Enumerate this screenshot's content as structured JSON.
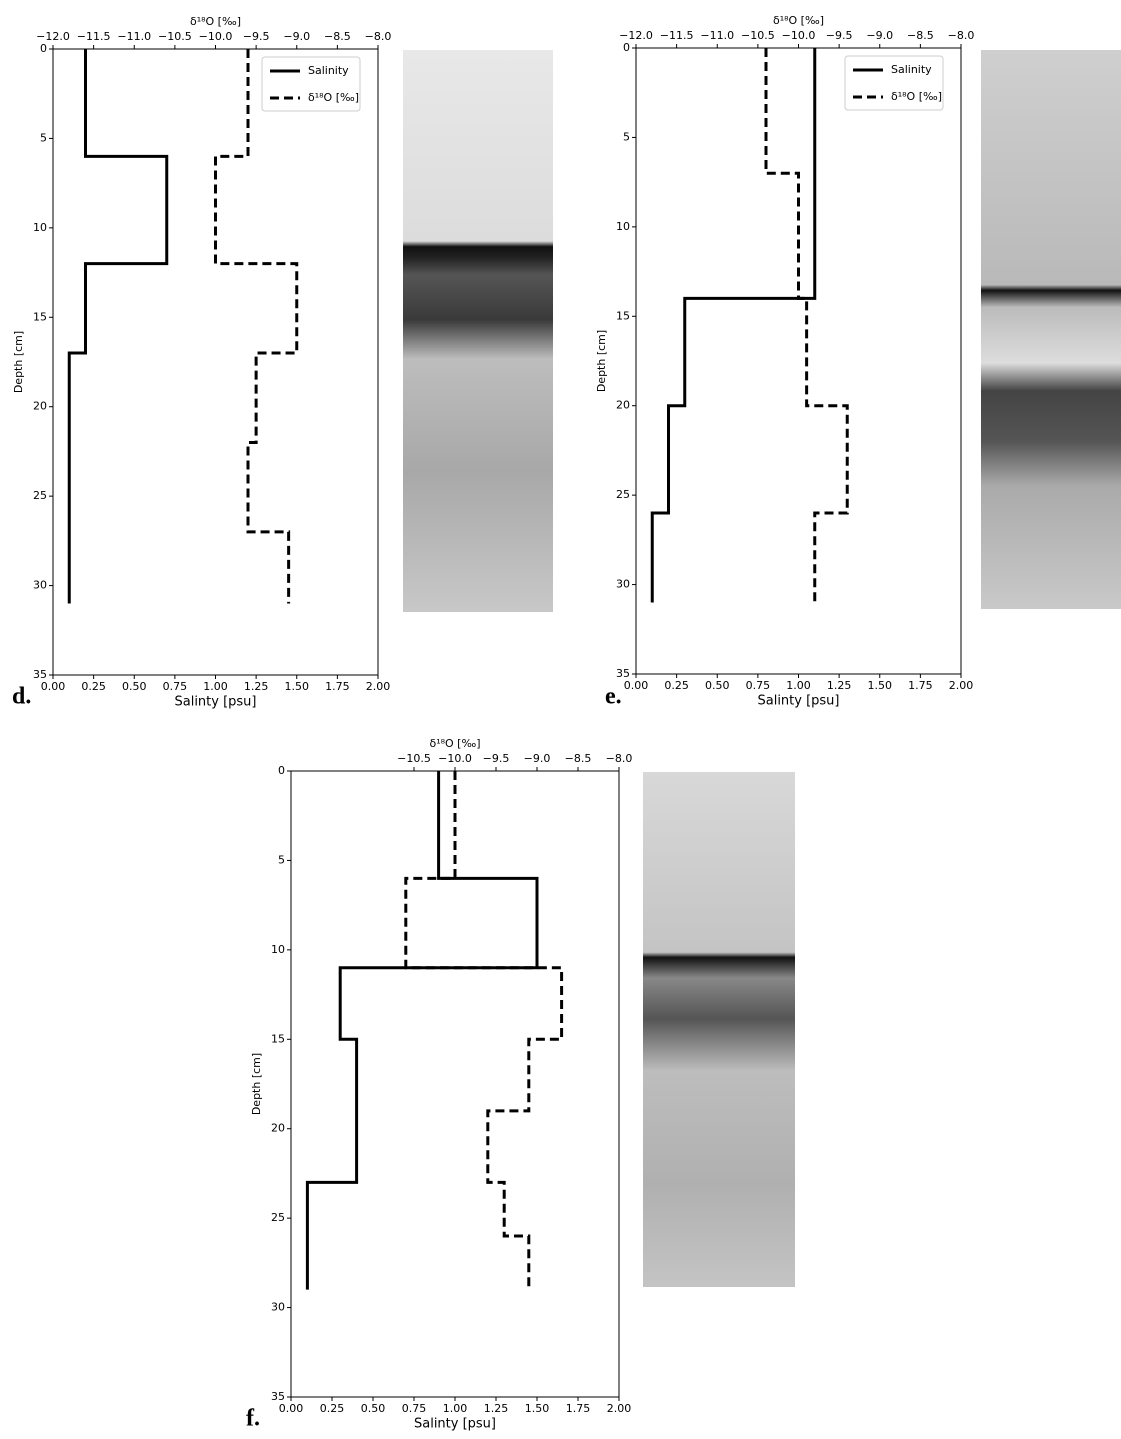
{
  "chart_data": [
    {
      "type": "line",
      "panel_label": "d.",
      "xlabel": "Salinty [psu]",
      "x2label": "δ¹⁸O [‰]",
      "ylabel": "Depth [cm]",
      "xlim": [
        0,
        2
      ],
      "xticks": [
        {
          "value": 0,
          "label": "0.00"
        },
        0.25,
        {
          "value": 0.5,
          "label": "0.50"
        },
        0.75,
        {
          "value": 1,
          "label": "1.00"
        },
        1.25,
        {
          "value": 1.5,
          "label": "1.50"
        },
        1.75,
        {
          "value": 2,
          "label": "2.00"
        }
      ],
      "x2lim": [
        -12,
        -8
      ],
      "x2ticks": [
        {
          "value": -12,
          "label": "−12.0"
        },
        {
          "value": -11.5,
          "label": "−11.5"
        },
        {
          "value": -11,
          "label": "−11.0"
        },
        {
          "value": -10.5,
          "label": "−10.5"
        },
        {
          "value": -10,
          "label": "−10.0"
        },
        {
          "value": -9.5,
          "label": "−9.5"
        },
        {
          "value": -9,
          "label": "−9.0"
        },
        {
          "value": -8.5,
          "label": "−8.5"
        },
        {
          "value": -8,
          "label": "−8.0"
        }
      ],
      "ylim": [
        0,
        35
      ],
      "yticks": [
        0,
        5,
        10,
        15,
        20,
        25,
        30,
        35
      ],
      "legend": "upper right",
      "series": [
        {
          "name": "Salinity",
          "color": "#000000",
          "linestyle": "solid",
          "axis": "x",
          "depth": [
            0,
            6,
            6,
            12,
            12,
            17,
            17,
            31
          ],
          "values": [
            0.2,
            0.2,
            0.7,
            0.7,
            0.2,
            0.2,
            0.1,
            0.1
          ]
        },
        {
          "name": "δ¹⁸O [‰]",
          "color": "#000000",
          "linestyle": "dashed",
          "axis": "x2",
          "depth": [
            0,
            6,
            6,
            12,
            12,
            17,
            17,
            22,
            22,
            27,
            27,
            31
          ],
          "values": [
            -9.6,
            -9.6,
            -10.0,
            -10.0,
            -9.0,
            -9.0,
            -9.5,
            -9.5,
            -9.6,
            -9.6,
            -9.1,
            -9.1
          ]
        }
      ]
    },
    {
      "type": "line",
      "panel_label": "e.",
      "xlabel": "Salinty [psu]",
      "x2label": "δ¹⁸O [‰]",
      "ylabel": "Depth [cm]",
      "xlim": [
        0,
        2
      ],
      "xticks": [
        {
          "value": 0,
          "label": "0.00"
        },
        0.25,
        {
          "value": 0.5,
          "label": "0.50"
        },
        0.75,
        {
          "value": 1,
          "label": "1.00"
        },
        1.25,
        {
          "value": 1.5,
          "label": "1.50"
        },
        1.75,
        {
          "value": 2,
          "label": "2.00"
        }
      ],
      "x2lim": [
        -12,
        -8
      ],
      "x2ticks": [
        {
          "value": -12,
          "label": "−12.0"
        },
        {
          "value": -11.5,
          "label": "−11.5"
        },
        {
          "value": -11,
          "label": "−11.0"
        },
        {
          "value": -10.5,
          "label": "−10.5"
        },
        {
          "value": -10,
          "label": "−10.0"
        },
        {
          "value": -9.5,
          "label": "−9.5"
        },
        {
          "value": -9,
          "label": "−9.0"
        },
        {
          "value": -8.5,
          "label": "−8.5"
        },
        {
          "value": -8,
          "label": "−8.0"
        }
      ],
      "ylim": [
        0,
        35
      ],
      "yticks": [
        0,
        5,
        10,
        15,
        20,
        25,
        30,
        35
      ],
      "legend": "upper right",
      "series": [
        {
          "name": "Salinity",
          "color": "#000000",
          "linestyle": "solid",
          "axis": "x",
          "depth": [
            0,
            14,
            14,
            20,
            20,
            26,
            26,
            31
          ],
          "values": [
            1.1,
            1.1,
            0.3,
            0.3,
            0.2,
            0.2,
            0.1,
            0.1
          ]
        },
        {
          "name": "δ¹⁸O [‰]",
          "color": "#000000",
          "linestyle": "dashed",
          "axis": "x2",
          "depth": [
            0,
            7,
            7,
            14,
            14,
            20,
            20,
            26,
            26,
            31
          ],
          "values": [
            -10.4,
            -10.4,
            -10.0,
            -10.0,
            -9.9,
            -9.9,
            -9.4,
            -9.4,
            -9.8,
            -9.8
          ]
        }
      ]
    },
    {
      "type": "line",
      "panel_label": "f.",
      "xlabel": "Salinty [psu]",
      "x2label": "δ¹⁸O [‰]",
      "ylabel": "Depth [cm]",
      "xlim": [
        0,
        2
      ],
      "xticks": [
        {
          "value": 0,
          "label": "0.00"
        },
        0.25,
        {
          "value": 0.5,
          "label": "0.50"
        },
        0.75,
        {
          "value": 1,
          "label": "1.00"
        },
        1.25,
        {
          "value": 1.5,
          "label": "1.50"
        },
        1.75,
        {
          "value": 2,
          "label": "2.00"
        }
      ],
      "x2lim": [
        -12,
        -8
      ],
      "x2ticks": [
        {
          "value": -10.5,
          "label": "−10.5"
        },
        {
          "value": -10,
          "label": "−10.0"
        },
        {
          "value": -9.5,
          "label": "−9.5"
        },
        {
          "value": -9,
          "label": "−9.0"
        },
        {
          "value": -8.5,
          "label": "−8.5"
        },
        {
          "value": -8,
          "label": "−8.0"
        }
      ],
      "ylim": [
        0,
        35
      ],
      "yticks": [
        0,
        5,
        10,
        15,
        20,
        25,
        30,
        35
      ],
      "series": [
        {
          "name": "Salinity",
          "color": "#000000",
          "linestyle": "solid",
          "axis": "x",
          "depth": [
            0,
            6,
            6,
            11,
            11,
            15,
            15,
            23,
            23,
            29
          ],
          "values": [
            0.9,
            0.9,
            1.5,
            1.5,
            0.3,
            0.3,
            0.4,
            0.4,
            0.1,
            0.1
          ]
        },
        {
          "name": "δ¹⁸O [‰]",
          "color": "#000000",
          "linestyle": "dashed",
          "axis": "x2",
          "depth": [
            0,
            6,
            6,
            11,
            11,
            15,
            15,
            19,
            19,
            23,
            23,
            26,
            26,
            29
          ],
          "values": [
            -10.0,
            -10.0,
            -10.6,
            -10.6,
            -8.7,
            -8.7,
            -9.1,
            -9.1,
            -9.6,
            -9.6,
            -9.4,
            -9.4,
            -9.1,
            -9.1
          ]
        }
      ]
    }
  ]
}
